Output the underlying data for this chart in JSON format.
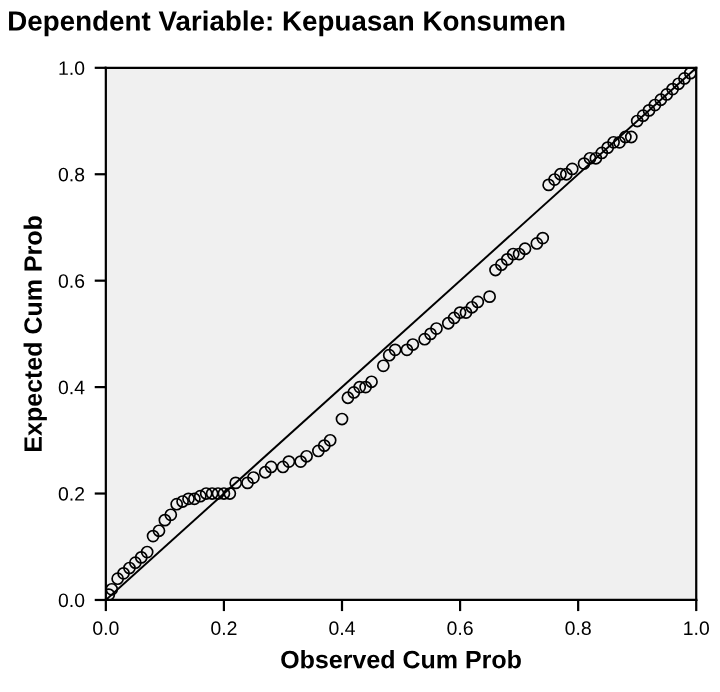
{
  "chart_data": {
    "type": "scatter",
    "title": "Dependent Variable: Kepuasan Konsumen",
    "xlabel": "Observed Cum Prob",
    "ylabel": "Expected Cum Prob",
    "xlim": [
      0,
      1
    ],
    "ylim": [
      0,
      1
    ],
    "xticks": [
      {
        "value": 0,
        "label": "0.0"
      },
      {
        "value": 0.2,
        "label": "0.2"
      },
      {
        "value": 0.4,
        "label": "0.4"
      },
      {
        "value": 0.6,
        "label": "0.6"
      },
      {
        "value": 0.8,
        "label": "0.8"
      },
      {
        "value": 1,
        "label": "1.0"
      }
    ],
    "yticks": [
      {
        "value": 0,
        "label": "0.0"
      },
      {
        "value": 0.2,
        "label": "0.2"
      },
      {
        "value": 0.4,
        "label": "0.4"
      },
      {
        "value": 0.6,
        "label": "0.6"
      },
      {
        "value": 0.8,
        "label": "0.8"
      },
      {
        "value": 1,
        "label": "1.0"
      }
    ],
    "grid": false,
    "legend": false,
    "marker": "circle",
    "series": [
      {
        "color": "#000000",
        "x": [
          0.005,
          0.01,
          0.02,
          0.03,
          0.04,
          0.05,
          0.06,
          0.07,
          0.08,
          0.09,
          0.1,
          0.11,
          0.12,
          0.13,
          0.14,
          0.15,
          0.16,
          0.17,
          0.18,
          0.19,
          0.2,
          0.21,
          0.22,
          0.24,
          0.25,
          0.27,
          0.28,
          0.3,
          0.31,
          0.33,
          0.34,
          0.36,
          0.37,
          0.38,
          0.4,
          0.41,
          0.42,
          0.43,
          0.44,
          0.45,
          0.47,
          0.48,
          0.49,
          0.51,
          0.52,
          0.54,
          0.55,
          0.56,
          0.58,
          0.59,
          0.6,
          0.61,
          0.62,
          0.63,
          0.65,
          0.66,
          0.67,
          0.68,
          0.69,
          0.7,
          0.71,
          0.73,
          0.74,
          0.75,
          0.76,
          0.77,
          0.78,
          0.79,
          0.81,
          0.82,
          0.83,
          0.84,
          0.85,
          0.86,
          0.87,
          0.88,
          0.89,
          0.9,
          0.91,
          0.92,
          0.93,
          0.94,
          0.95,
          0.96,
          0.97,
          0.98,
          0.99
        ],
        "values": [
          0.01,
          0.02,
          0.04,
          0.05,
          0.06,
          0.07,
          0.08,
          0.09,
          0.12,
          0.13,
          0.15,
          0.16,
          0.18,
          0.185,
          0.19,
          0.19,
          0.195,
          0.2,
          0.2,
          0.2,
          0.2,
          0.2,
          0.22,
          0.22,
          0.23,
          0.24,
          0.25,
          0.25,
          0.26,
          0.26,
          0.27,
          0.28,
          0.29,
          0.3,
          0.34,
          0.38,
          0.39,
          0.4,
          0.4,
          0.41,
          0.44,
          0.46,
          0.47,
          0.47,
          0.48,
          0.49,
          0.5,
          0.51,
          0.52,
          0.53,
          0.54,
          0.54,
          0.55,
          0.56,
          0.57,
          0.62,
          0.63,
          0.64,
          0.65,
          0.65,
          0.66,
          0.67,
          0.68,
          0.78,
          0.79,
          0.8,
          0.8,
          0.81,
          0.82,
          0.83,
          0.83,
          0.84,
          0.85,
          0.86,
          0.86,
          0.87,
          0.87,
          0.9,
          0.91,
          0.92,
          0.93,
          0.94,
          0.95,
          0.96,
          0.97,
          0.98,
          0.99
        ]
      },
      {
        "type": "line",
        "color": "#000000",
        "x": [
          0,
          1
        ],
        "values": [
          0,
          1
        ],
        "marker": "none"
      }
    ]
  }
}
